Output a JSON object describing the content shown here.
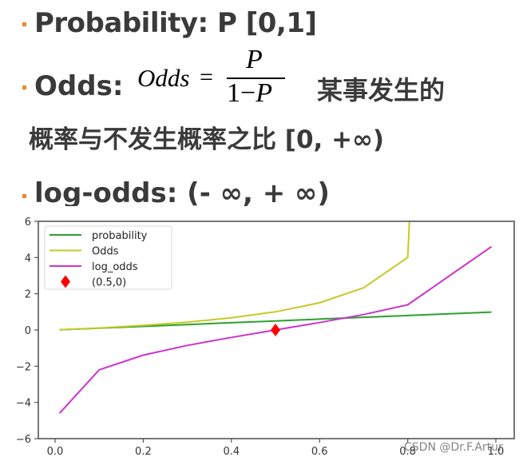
{
  "slide": {
    "bullet_color": "#e8892a",
    "text_color": "#3a3a3a",
    "lines": [
      {
        "label": "Probability: P  [0,1]"
      },
      {
        "label": "Odds:",
        "formula": {
          "lhs": "Odds",
          "eq": "=",
          "numerator": "P",
          "denominator_prefix": "1−",
          "denominator_var": "P"
        },
        "tail": "某事发生的"
      },
      {
        "label": "概率与不发生概率之比   [0, +∞)"
      },
      {
        "label": "log-odds: (- ∞, + ∞)"
      }
    ]
  },
  "watermark": "CSDN @Dr.F.Artur",
  "chart_data": {
    "type": "line",
    "title": "",
    "xlabel": "",
    "ylabel": "",
    "xlim": [
      -0.04,
      1.04
    ],
    "ylim": [
      -6,
      6
    ],
    "grid": false,
    "legend_position": "upper left",
    "x_ticks": [
      "0.0",
      "0.2",
      "0.4",
      "0.6",
      "0.8",
      "1.0"
    ],
    "y_ticks": [
      "6",
      "4",
      "2",
      "0",
      "−2",
      "−4",
      "−6"
    ],
    "x": [
      0.01,
      0.1,
      0.2,
      0.3,
      0.4,
      0.5,
      0.6,
      0.7,
      0.8,
      0.99
    ],
    "series": [
      {
        "name": "probability",
        "color": "#2ca02c",
        "values": [
          0.01,
          0.1,
          0.2,
          0.3,
          0.4,
          0.5,
          0.6,
          0.7,
          0.8,
          0.99
        ]
      },
      {
        "name": "Odds",
        "color": "#c8c828",
        "values": [
          0.01,
          0.11,
          0.25,
          0.43,
          0.67,
          1.0,
          1.5,
          2.33,
          4.0,
          99.0
        ]
      },
      {
        "name": "log_odds",
        "color": "#cc33cc",
        "values": [
          -4.6,
          -2.2,
          -1.39,
          -0.85,
          -0.41,
          0.0,
          0.41,
          0.85,
          1.39,
          4.6
        ]
      }
    ],
    "markers": [
      {
        "name": "(0.5,0)",
        "x": 0.5,
        "y": 0,
        "shape": "diamond",
        "color": "#ff0000"
      }
    ]
  }
}
